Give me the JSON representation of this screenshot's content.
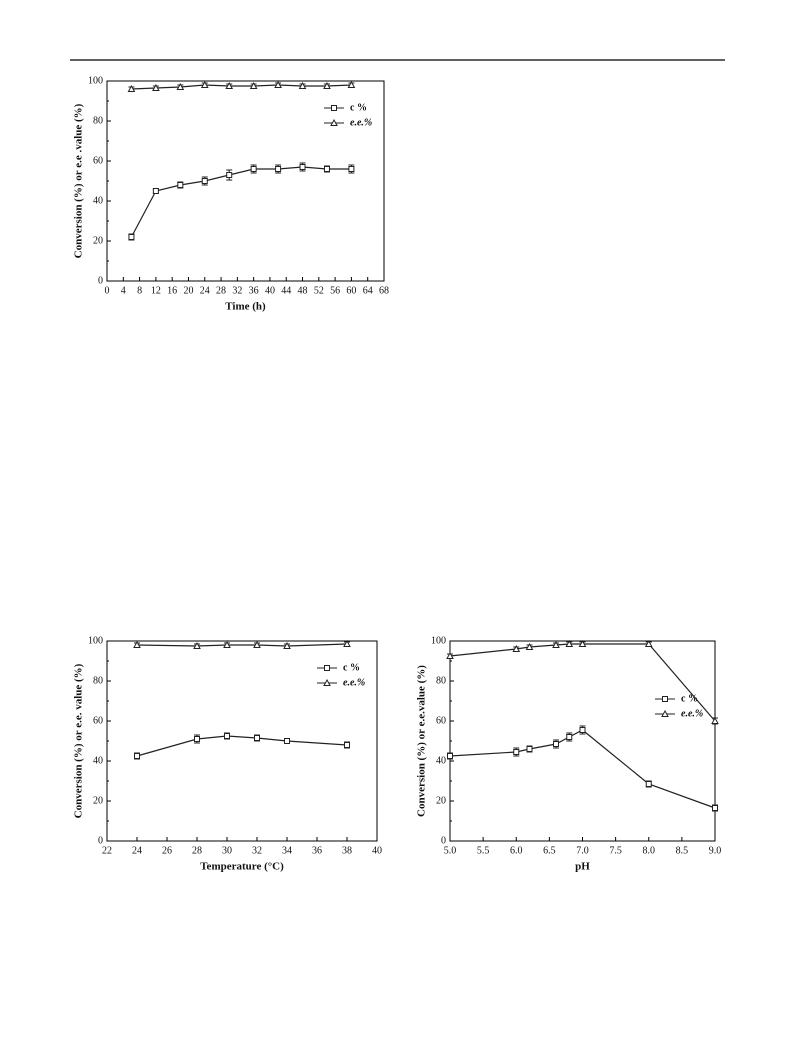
{
  "chart_data": [
    {
      "type": "line",
      "x_label": "Time (h)",
      "y_label": "Conversion (%) or e.e .value (%)",
      "xlim": [
        0,
        68
      ],
      "xticks": [
        0,
        4,
        8,
        12,
        16,
        20,
        24,
        28,
        32,
        36,
        40,
        44,
        48,
        52,
        56,
        60,
        64,
        68
      ],
      "ylim": [
        0,
        100
      ],
      "yticks": [
        0,
        20,
        40,
        60,
        80,
        100
      ],
      "legend": "upper right",
      "x": [
        6,
        12,
        18,
        24,
        30,
        36,
        42,
        48,
        54,
        60
      ],
      "series": [
        {
          "name": "c %",
          "color": "#222222",
          "values": [
            22,
            45,
            48,
            50,
            53,
            56,
            56,
            57,
            56,
            56
          ],
          "errors": [
            1.5,
            1,
            1.5,
            2,
            2.5,
            2,
            2,
            2,
            1.5,
            2
          ]
        },
        {
          "name": "e.e.%",
          "color": "#222222",
          "values": [
            96,
            96.5,
            97,
            98,
            97.5,
            97.5,
            98,
            97.5,
            97.5,
            98
          ],
          "errors": [
            1,
            1,
            1,
            1,
            1,
            1,
            1,
            1,
            1,
            1
          ]
        }
      ]
    },
    {
      "type": "line",
      "x_label": "Temperature (°C)",
      "y_label": "Conversion (%) or e.e. value (%)",
      "xlim": [
        22,
        40
      ],
      "xticks": [
        22,
        24,
        26,
        28,
        30,
        32,
        34,
        36,
        38,
        40
      ],
      "ylim": [
        0,
        100
      ],
      "yticks": [
        0,
        20,
        40,
        60,
        80,
        100
      ],
      "legend": "upper right",
      "x": [
        24,
        28,
        30,
        32,
        34,
        38
      ],
      "series": [
        {
          "name": "c %",
          "color": "#222222",
          "values": [
            42.5,
            51,
            52.5,
            51.5,
            50,
            48
          ],
          "errors": [
            1.5,
            2,
            1.5,
            1.5,
            1,
            1.5
          ]
        },
        {
          "name": "e.e.%",
          "color": "#222222",
          "values": [
            98,
            97.5,
            98,
            98,
            97.5,
            98.5
          ],
          "errors": [
            1,
            1,
            1,
            1,
            1,
            1
          ]
        }
      ]
    },
    {
      "type": "line",
      "x_label": "pH",
      "y_label": "Conversion (%) or e.e.value (%)",
      "xlim": [
        5,
        9
      ],
      "xticks": [
        {
          "value": 5,
          "label": "5.0"
        },
        {
          "value": 5.5,
          "label": "5.5"
        },
        {
          "value": 6,
          "label": "6.0"
        },
        {
          "value": 6.5,
          "label": "6.5"
        },
        {
          "value": 7,
          "label": "7.0"
        },
        {
          "value": 7.5,
          "label": "7.5"
        },
        {
          "value": 8,
          "label": "8.0"
        },
        {
          "value": 8.5,
          "label": "8.5"
        },
        {
          "value": 9,
          "label": "9.0"
        }
      ],
      "ylim": [
        0,
        100
      ],
      "yticks": [
        0,
        20,
        40,
        60,
        80,
        100
      ],
      "legend": "center right",
      "x": [
        5,
        6,
        6.2,
        6.6,
        6.8,
        7,
        8,
        9
      ],
      "series": [
        {
          "name": "c %",
          "color": "#222222",
          "values": [
            42.5,
            44.5,
            46,
            48.5,
            52,
            55.5,
            28.5,
            16.5
          ],
          "errors": [
            1.5,
            2,
            1.5,
            2,
            2,
            2,
            1.5,
            1.5
          ]
        },
        {
          "name": "e.e.%",
          "color": "#222222",
          "values": [
            92.5,
            96,
            97,
            98,
            98.5,
            98.5,
            98.5,
            60
          ],
          "errors": [
            1,
            1,
            1,
            1,
            1,
            1,
            1,
            1.5
          ]
        }
      ]
    }
  ]
}
